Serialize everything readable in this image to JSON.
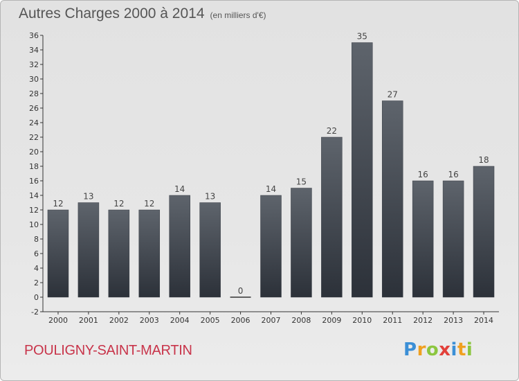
{
  "title": "Autres Charges 2000 à 2014",
  "subtitle": "(en milliers d'€)",
  "commune": "POULIGNY-SAINT-MARTIN",
  "logo": {
    "text": "Proxiti",
    "letters": [
      {
        "char": "P",
        "color": "#3b8fd6"
      },
      {
        "char": "r",
        "color": "#f0a020"
      },
      {
        "char": "o",
        "color": "#8cc63f"
      },
      {
        "char": "x",
        "color": "#e2403a"
      },
      {
        "char": "i",
        "color": "#3b8fd6"
      },
      {
        "char": "t",
        "color": "#f0a020"
      },
      {
        "char": "i",
        "color": "#8cc63f"
      }
    ]
  },
  "colors": {
    "bar_top": "#5e646c",
    "bar_bottom": "#2c3139",
    "title": "#555555",
    "commune": "#c8344a"
  },
  "chart_data": {
    "type": "bar",
    "categories": [
      "2000",
      "2001",
      "2002",
      "2003",
      "2004",
      "2005",
      "2006",
      "2007",
      "2008",
      "2009",
      "2010",
      "2011",
      "2012",
      "2013",
      "2014"
    ],
    "values": [
      12,
      13,
      12,
      12,
      14,
      13,
      0,
      14,
      15,
      22,
      35,
      27,
      16,
      16,
      18
    ],
    "title": "Autres Charges 2000 à 2014",
    "subtitle": "(en milliers d'€)",
    "ylim": [
      -2,
      36
    ],
    "yticks": [
      -2,
      0,
      2,
      4,
      6,
      8,
      10,
      12,
      14,
      16,
      18,
      20,
      22,
      24,
      26,
      28,
      30,
      32,
      34,
      36
    ],
    "grid": false,
    "data_labels": true
  }
}
